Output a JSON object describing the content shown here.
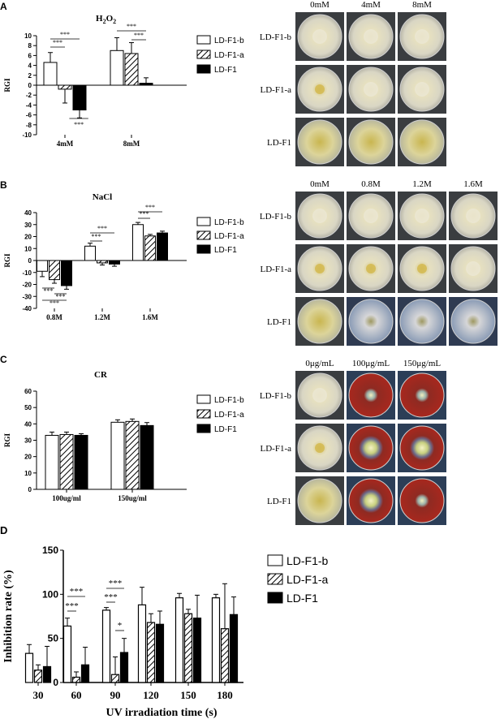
{
  "panels": {
    "A": {
      "label": "A",
      "photo_columns": [
        "0mM",
        "4mM",
        "8mM"
      ],
      "photo_rows": [
        "LD-F1-b",
        "LD-F1-a",
        "LD-F1"
      ]
    },
    "B": {
      "label": "B",
      "photo_columns": [
        "0mM",
        "0.8M",
        "1.2M",
        "1.6M"
      ],
      "photo_rows": [
        "LD-F1-b",
        "LD-F1-a",
        "LD-F1"
      ]
    },
    "C": {
      "label": "C",
      "photo_columns": [
        "0μg/mL",
        "100μg/mL",
        "150μg/mL"
      ],
      "photo_rows": [
        "LD-F1-b",
        "LD-F1-a",
        "LD-F1"
      ]
    },
    "D": {
      "label": "D"
    }
  },
  "colors": {
    "LD-F1-b": "#ffffff",
    "LD-F1-a": "hatch",
    "LD-F1": "#000000",
    "plate_light": "#e6e2c6",
    "plate_red": "#a0241c"
  },
  "chart_data": [
    {
      "id": "A",
      "type": "bar",
      "title": "H2O2",
      "title_main": "H",
      "title_sub1": "2",
      "title_mid": "O",
      "title_sub2": "2",
      "xlabel": "",
      "ylabel": "RGI",
      "categories": [
        "4mM",
        "8mM"
      ],
      "ylim": [
        -10,
        10
      ],
      "yticks": [
        -10,
        -8,
        -6,
        -4,
        -2,
        0,
        2,
        4,
        6,
        8,
        10
      ],
      "legend_position": "right",
      "series": [
        {
          "name": "LD-F1-b",
          "values": [
            4.6,
            7.0
          ],
          "errors": [
            2.0,
            2.6
          ]
        },
        {
          "name": "LD-F1-a",
          "values": [
            -0.8,
            6.4
          ],
          "errors": [
            2.8,
            2.2
          ]
        },
        {
          "name": "LD-F1",
          "values": [
            -5.0,
            0.4
          ],
          "errors": [
            1.6,
            1.1
          ]
        }
      ],
      "significance": [
        "***",
        "***",
        "***",
        "***",
        "***"
      ]
    },
    {
      "id": "B",
      "type": "bar",
      "title": "NaCl",
      "xlabel": "",
      "ylabel": "RGI",
      "categories": [
        "0.8M",
        "1.2M",
        "1.6M"
      ],
      "ylim": [
        -40,
        40
      ],
      "yticks": [
        -40,
        -30,
        -20,
        -10,
        0,
        10,
        20,
        30,
        40
      ],
      "legend_position": "right",
      "series": [
        {
          "name": "LD-F1-b",
          "values": [
            -9,
            12,
            30
          ],
          "errors": [
            4.5,
            2.5,
            1.8
          ]
        },
        {
          "name": "LD-F1-a",
          "values": [
            -16,
            -2,
            20.5
          ],
          "errors": [
            3.0,
            1.8,
            1.3
          ]
        },
        {
          "name": "LD-F1",
          "values": [
            -21,
            -3,
            23
          ],
          "errors": [
            3.0,
            1.8,
            1.5
          ]
        }
      ],
      "significance": [
        "***",
        "***",
        "***",
        "***",
        "***",
        "***",
        "***"
      ]
    },
    {
      "id": "C",
      "type": "bar",
      "title": "CR",
      "xlabel": "",
      "ylabel": "RGI",
      "categories": [
        "100ug/ml",
        "150ug/ml"
      ],
      "ylim": [
        0,
        60
      ],
      "yticks": [
        0,
        10,
        20,
        30,
        40,
        50,
        60
      ],
      "legend_position": "right",
      "series": [
        {
          "name": "LD-F1-b",
          "values": [
            33,
            41
          ],
          "errors": [
            2.0,
            1.5
          ]
        },
        {
          "name": "LD-F1-a",
          "values": [
            33.5,
            41.5
          ],
          "errors": [
            1.5,
            1.5
          ]
        },
        {
          "name": "LD-F1",
          "values": [
            33,
            39
          ],
          "errors": [
            1.0,
            1.8
          ]
        }
      ],
      "significance": []
    },
    {
      "id": "D",
      "type": "bar",
      "title": "",
      "xlabel": "UV irradiation time (s)",
      "ylabel": "Inhibition rate (%)",
      "categories": [
        "30",
        "60",
        "90",
        "120",
        "150",
        "180"
      ],
      "ylim": [
        0,
        150
      ],
      "yticks": [
        0,
        50,
        100,
        150
      ],
      "legend_position": "right",
      "series": [
        {
          "name": "LD-F1-b",
          "values": [
            33,
            64,
            82,
            88,
            96,
            96
          ],
          "errors": [
            10,
            9,
            3,
            20,
            5,
            4
          ]
        },
        {
          "name": "LD-F1-a",
          "values": [
            14,
            6,
            9,
            68,
            78,
            61
          ],
          "errors": [
            6,
            6,
            20,
            10,
            5,
            51
          ]
        },
        {
          "name": "LD-F1",
          "values": [
            18,
            20,
            34,
            66,
            73,
            77
          ],
          "errors": [
            23,
            20,
            16,
            15,
            26,
            20
          ]
        }
      ],
      "significance": [
        "***",
        "***",
        "***",
        "***",
        "*"
      ]
    }
  ]
}
